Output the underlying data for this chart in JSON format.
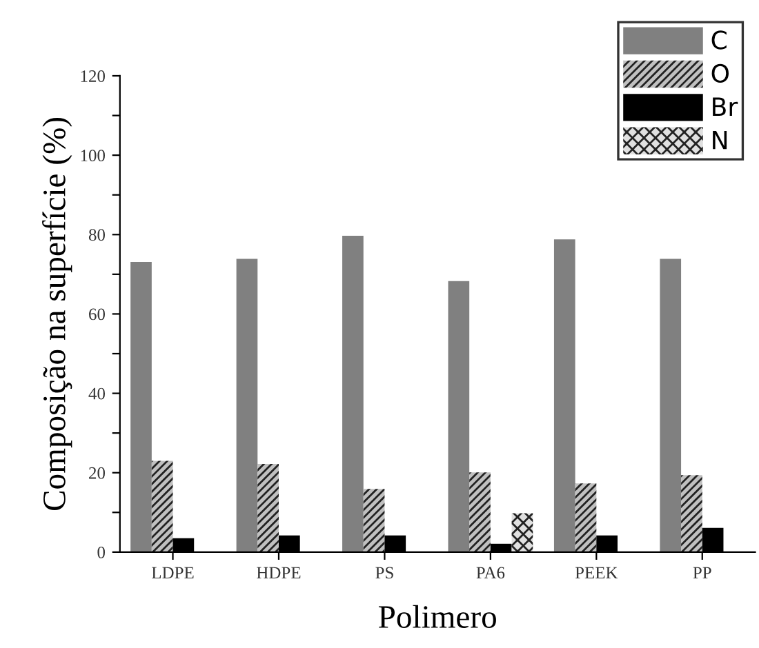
{
  "chart_data": {
    "type": "bar",
    "xlabel": "Polimero",
    "ylabel": "Composição na superfície (%)",
    "categories": [
      "LDPE",
      "HDPE",
      "PS",
      "PA6",
      "PEEK",
      "PP"
    ],
    "series": [
      {
        "name": "C",
        "color": "#808080",
        "values": [
          73.1,
          73.9,
          79.7,
          68.3,
          78.8,
          73.9
        ]
      },
      {
        "name": "O",
        "color": "#c0c0c0",
        "values": [
          23.0,
          22.2,
          15.9,
          20.1,
          17.3,
          19.4
        ]
      },
      {
        "name": "Br",
        "color": "#000000",
        "values": [
          3.5,
          4.2,
          4.2,
          2.1,
          4.2,
          6.1
        ]
      },
      {
        "name": "N",
        "color": "#e0e0e0",
        "values": [
          null,
          null,
          null,
          9.8,
          null,
          null
        ]
      }
    ],
    "ylim": [
      0,
      120
    ],
    "yticks": [
      0,
      {
        "value": 10,
        "label": null
      },
      20,
      {
        "value": 30,
        "label": null
      },
      40,
      {
        "value": 50,
        "label": null
      },
      60,
      {
        "value": 70,
        "label": null
      },
      80,
      {
        "value": 90,
        "label": null
      },
      100,
      {
        "value": 110,
        "label": null
      },
      120
    ],
    "grid": false,
    "legend": "top right"
  }
}
